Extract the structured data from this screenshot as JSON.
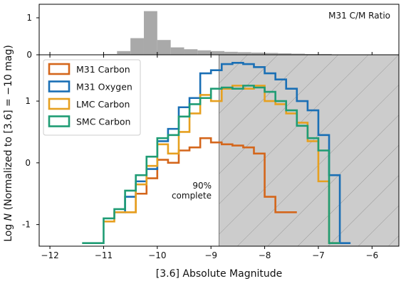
{
  "chart_data": [
    {
      "panel": "top",
      "type": "bar",
      "title": "M31 C/M Ratio",
      "ylabel": "",
      "yticks": [
        "0",
        "1"
      ],
      "ylim": [
        0,
        1.25
      ],
      "bin_width": 0.25,
      "x": [
        -10.875,
        -10.625,
        -10.375,
        -10.125,
        -9.875,
        -9.625,
        -9.375,
        -9.125,
        -8.875,
        -8.625,
        -8.375,
        -8.125,
        -7.875,
        -7.625,
        -7.375,
        -7.125,
        -6.875
      ],
      "values": [
        0.02,
        0.1,
        0.45,
        1.18,
        0.4,
        0.2,
        0.15,
        0.12,
        0.1,
        0.08,
        0.07,
        0.06,
        0.05,
        0.04,
        0.03,
        0.02,
        0.02
      ],
      "color": "#a9a9a9"
    },
    {
      "panel": "main",
      "type": "line",
      "step": true,
      "xlabel": "[3.6] Absolute Magnitude",
      "ylabel_prefix": "Log ",
      "ylabel_var": "N",
      "ylabel_suffix": " (Normalized to [3.6] = −10 mag)",
      "xlim": [
        -12.2,
        -5.5
      ],
      "ylim": [
        -1.35,
        1.75
      ],
      "xticks": [
        -12,
        -11,
        -10,
        -9,
        -8,
        -7,
        -6
      ],
      "xtick_labels": [
        "−12",
        "−11",
        "−10",
        "−9",
        "−8",
        "−7",
        "−6"
      ],
      "yticks": [
        -1,
        0,
        1
      ],
      "ytick_labels": [
        "-1",
        "0",
        "1"
      ],
      "bin_width": 0.2,
      "shaded_region": {
        "from": -8.85,
        "to": -5.5,
        "color": "#cccccc",
        "hatch": true
      },
      "annotation": {
        "line1": "90%",
        "line2": "complete"
      },
      "legend_position": "upper-left",
      "series": [
        {
          "name": "M31 Carbon",
          "color": "#d4661b",
          "x": [
            -10.5,
            -10.3,
            -10.1,
            -9.9,
            -9.7,
            -9.5,
            -9.3,
            -9.1,
            -8.9,
            -8.7,
            -8.5,
            -8.3,
            -8.1,
            -7.9,
            -7.7,
            -7.5
          ],
          "y": [
            -0.8,
            -0.5,
            -0.25,
            0.05,
            0.0,
            0.2,
            0.25,
            0.4,
            0.33,
            0.3,
            0.28,
            0.25,
            0.15,
            -0.55,
            -0.8,
            -0.8
          ]
        },
        {
          "name": "M31 Oxygen",
          "color": "#1a6fb5",
          "x": [
            -10.7,
            -10.5,
            -10.3,
            -10.1,
            -9.9,
            -9.7,
            -9.5,
            -9.3,
            -9.1,
            -8.9,
            -8.7,
            -8.5,
            -8.3,
            -8.1,
            -7.9,
            -7.7,
            -7.5,
            -7.3,
            -7.1,
            -6.9,
            -6.7,
            -6.5
          ],
          "y": [
            -0.8,
            -0.55,
            -0.3,
            -0.1,
            0.35,
            0.55,
            0.9,
            1.05,
            1.45,
            1.5,
            1.6,
            1.62,
            1.6,
            1.55,
            1.45,
            1.35,
            1.2,
            1.0,
            0.85,
            0.45,
            -0.2,
            -1.3
          ]
        },
        {
          "name": "LMC Carbon",
          "color": "#e6a020",
          "x": [
            -10.9,
            -10.7,
            -10.5,
            -10.3,
            -10.1,
            -9.9,
            -9.7,
            -9.5,
            -9.3,
            -9.1,
            -8.9,
            -8.7,
            -8.5,
            -8.3,
            -8.1,
            -7.9,
            -7.7,
            -7.5,
            -7.3,
            -7.1,
            -6.9,
            -6.7
          ],
          "y": [
            -0.95,
            -0.8,
            -0.8,
            -0.35,
            -0.05,
            0.3,
            0.15,
            0.5,
            0.8,
            1.1,
            1.0,
            1.2,
            1.25,
            1.2,
            1.25,
            1.0,
            0.95,
            0.8,
            0.65,
            0.35,
            -0.3,
            -1.3
          ]
        },
        {
          "name": "SMC Carbon",
          "color": "#1f9c74",
          "x": [
            -11.3,
            -11.1,
            -10.9,
            -10.7,
            -10.5,
            -10.3,
            -10.1,
            -9.9,
            -9.7,
            -9.5,
            -9.3,
            -9.1,
            -8.9,
            -8.7,
            -8.5,
            -8.3,
            -8.1,
            -7.9,
            -7.7,
            -7.5,
            -7.3,
            -7.1,
            -6.9,
            -6.7
          ],
          "y": [
            -1.3,
            -1.3,
            -0.9,
            -0.75,
            -0.45,
            -0.2,
            0.1,
            0.4,
            0.45,
            0.75,
            0.95,
            1.05,
            1.2,
            1.22,
            1.2,
            1.25,
            1.22,
            1.15,
            1.0,
            0.85,
            0.6,
            0.4,
            0.2,
            -1.3
          ]
        }
      ]
    }
  ]
}
